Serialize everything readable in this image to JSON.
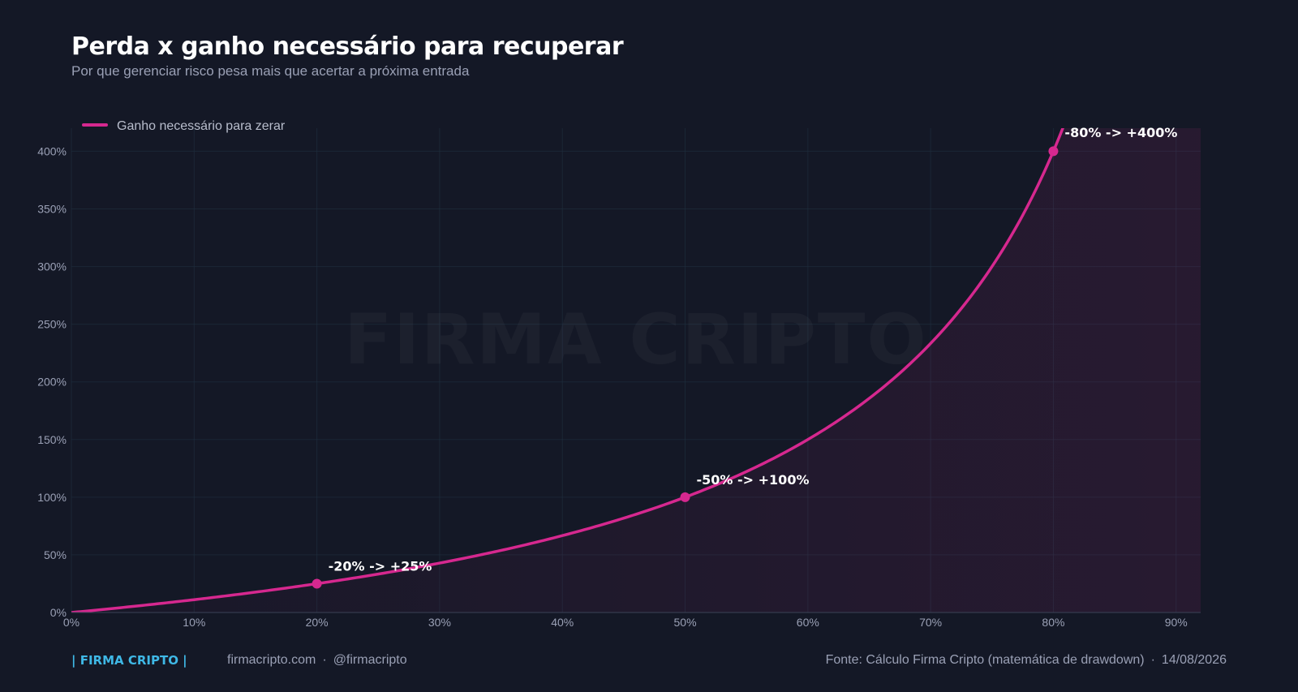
{
  "header": {
    "title": "Perda x ganho necessário para recuperar",
    "subtitle": "Por que gerenciar risco pesa mais que acertar a próxima entrada"
  },
  "watermark": "FIRMA CRIPTO",
  "chart_data": {
    "type": "line",
    "title": "Perda x ganho necessário para recuperar",
    "subtitle": "Por que gerenciar risco pesa mais que acertar a próxima entrada",
    "xlabel": "",
    "ylabel": "",
    "xlim": [
      0,
      92
    ],
    "ylim": [
      0,
      400
    ],
    "x_ticks": [
      "0%",
      "10%",
      "20%",
      "30%",
      "40%",
      "50%",
      "60%",
      "70%",
      "80%",
      "90%"
    ],
    "x_tick_values": [
      0,
      10,
      20,
      30,
      40,
      50,
      60,
      70,
      80,
      90
    ],
    "y_ticks": [
      "0%",
      "50%",
      "100%",
      "150%",
      "200%",
      "250%",
      "300%",
      "350%",
      "400%"
    ],
    "y_tick_values": [
      0,
      50,
      100,
      150,
      200,
      250,
      300,
      350,
      400
    ],
    "grid": true,
    "legend_position": "top-left",
    "series": [
      {
        "name": "Ganho necessário para zerar",
        "color": "#d6288f",
        "formula": "100*x/(100-x)",
        "x": [
          0,
          5,
          10,
          15,
          20,
          25,
          30,
          35,
          40,
          45,
          50,
          55,
          60,
          65,
          70,
          75,
          80,
          81
        ],
        "y": [
          0,
          5.26,
          11.11,
          17.65,
          25,
          33.33,
          42.86,
          53.85,
          66.67,
          81.82,
          100,
          122.22,
          150,
          185.71,
          233.33,
          300,
          400,
          426.3
        ]
      }
    ],
    "annotations": [
      {
        "x": 20,
        "y": 25,
        "label": "-20% -> +25%"
      },
      {
        "x": 50,
        "y": 100,
        "label": "-50% -> +100%"
      },
      {
        "x": 80,
        "y": 400,
        "label": "-80% -> +400%"
      }
    ]
  },
  "footer": {
    "brand": "| FIRMA CRIPTO |",
    "site": "firmacripto.com",
    "handle": "@firmacripto",
    "source": "Fonte: Cálculo Firma Cripto (matemática de drawdown)",
    "date": "14/08/2026"
  }
}
